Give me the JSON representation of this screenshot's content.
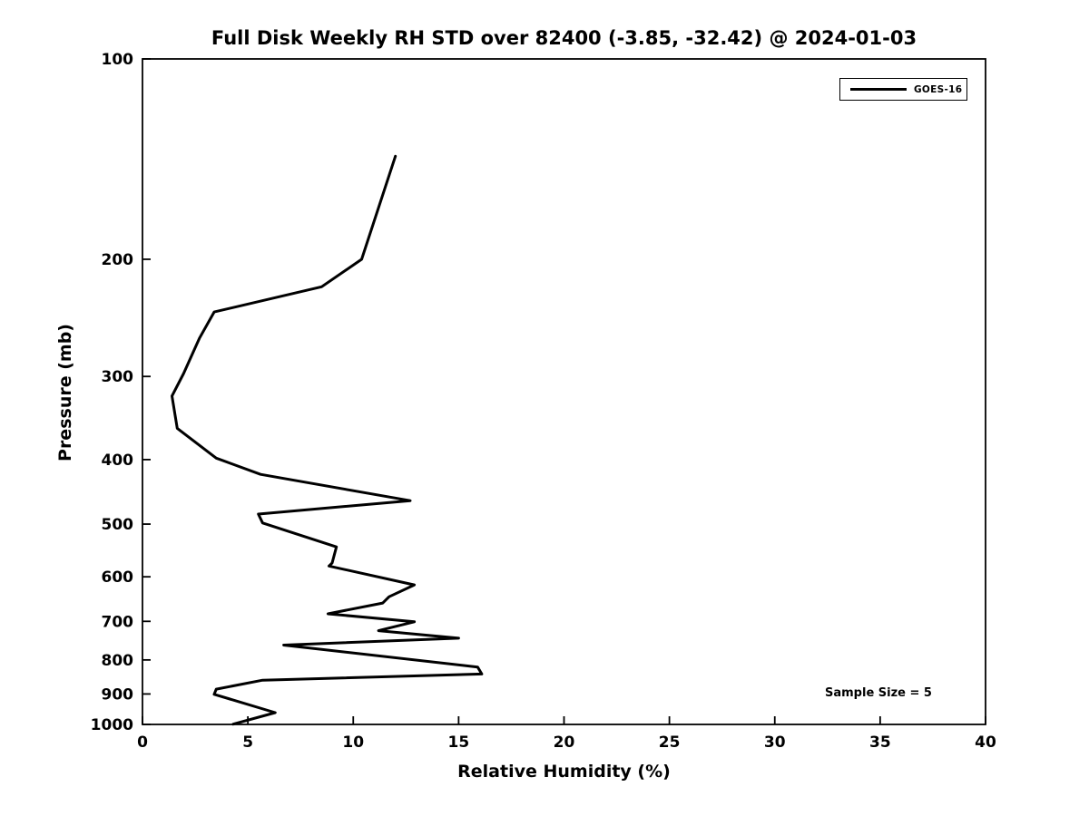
{
  "chart_data": {
    "type": "line",
    "title": "Full Disk Weekly RH STD over 82400 (-3.85, -32.42) @ 2024-01-03",
    "xlabel": "Relative Humidity (%)",
    "ylabel": "Pressure (mb)",
    "xlim": [
      0,
      40
    ],
    "ylim": [
      100,
      1000
    ],
    "y_scale": "log",
    "y_inverted": true,
    "x_ticks": [
      0,
      5,
      10,
      15,
      20,
      25,
      30,
      35,
      40
    ],
    "y_ticks": [
      100,
      200,
      300,
      400,
      500,
      600,
      700,
      800,
      900,
      1000
    ],
    "grid": false,
    "legend_position": "upper-right",
    "annotation": "Sample Size = 5",
    "line_color": "#000000",
    "background_color": "#ffffff",
    "series": [
      {
        "name": "GOES-16",
        "points_rh_pressure": [
          [
            12.0,
            140
          ],
          [
            10.4,
            200
          ],
          [
            8.5,
            220
          ],
          [
            3.4,
            240
          ],
          [
            2.7,
            263
          ],
          [
            1.95,
            297
          ],
          [
            1.4,
            321
          ],
          [
            1.65,
            359
          ],
          [
            3.5,
            398
          ],
          [
            5.6,
            421
          ],
          [
            12.7,
            461
          ],
          [
            5.5,
            483
          ],
          [
            5.7,
            498
          ],
          [
            9.2,
            541
          ],
          [
            9.0,
            572
          ],
          [
            8.85,
            578
          ],
          [
            12.9,
            617
          ],
          [
            11.7,
            643
          ],
          [
            11.4,
            657
          ],
          [
            8.8,
            682
          ],
          [
            12.9,
            701
          ],
          [
            11.2,
            723
          ],
          [
            15.0,
            742
          ],
          [
            6.7,
            760
          ],
          [
            15.9,
            820
          ],
          [
            16.1,
            840
          ],
          [
            5.7,
            858
          ],
          [
            3.5,
            885
          ],
          [
            3.4,
            901
          ],
          [
            6.3,
            960
          ],
          [
            4.3,
            999
          ]
        ]
      }
    ]
  }
}
